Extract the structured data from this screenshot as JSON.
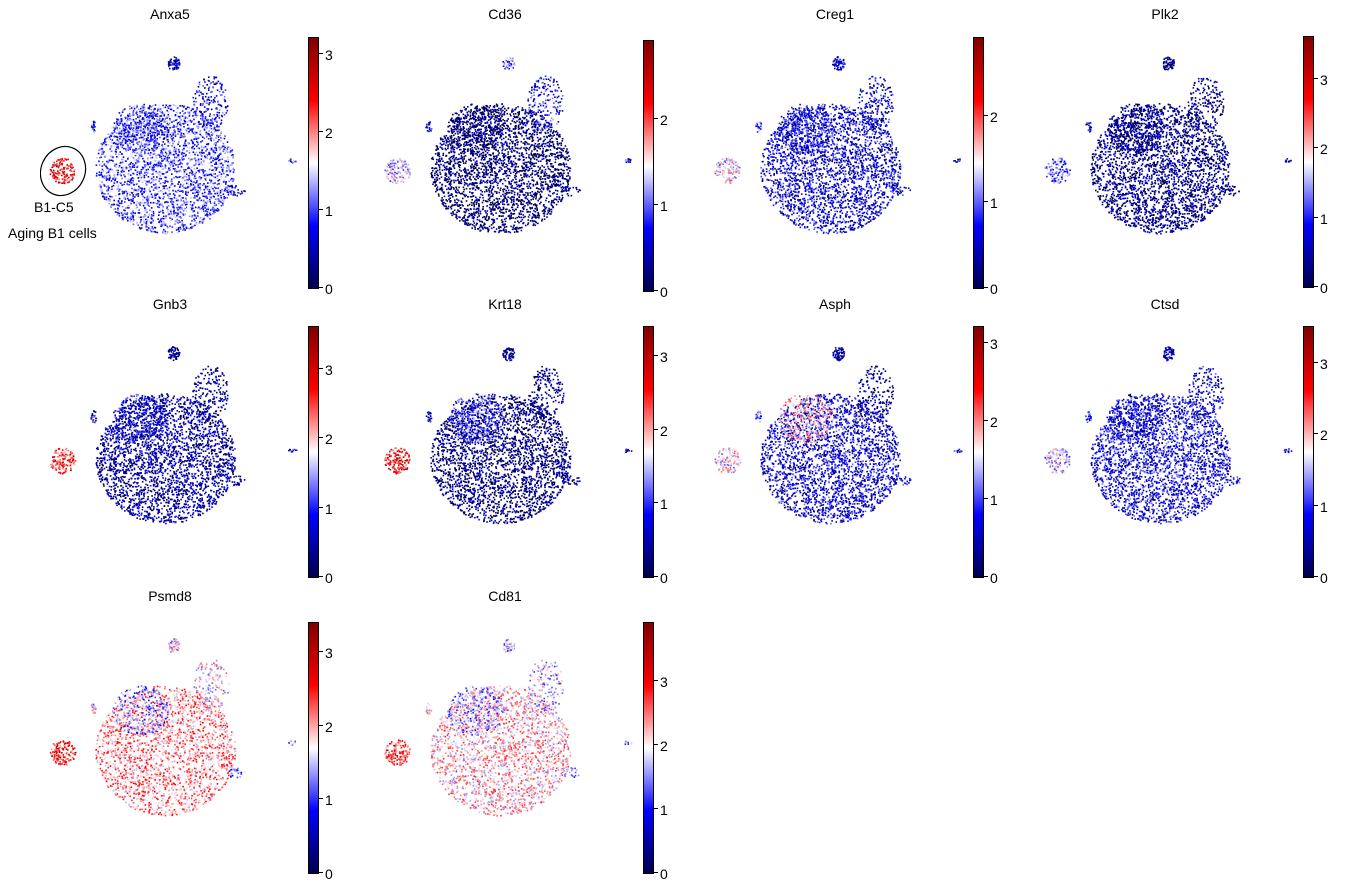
{
  "annotation": {
    "cluster": "B1-C5",
    "label": "Aging B1 cells"
  },
  "colormap": [
    "#00004c",
    "#0000ff",
    "#ffffff",
    "#ff0000",
    "#800000"
  ],
  "chart_data": [
    {
      "type": "scatter",
      "title": "Anxa5",
      "vmax": 3.2,
      "ticks": [
        "0",
        "1",
        "2",
        "3"
      ]
    },
    {
      "type": "scatter",
      "title": "Cd36",
      "vmax": 2.9,
      "ticks": [
        "0",
        "1",
        "2"
      ]
    },
    {
      "type": "scatter",
      "title": "Creg1",
      "vmax": 2.9,
      "ticks": [
        "0",
        "1",
        "2"
      ]
    },
    {
      "type": "scatter",
      "title": "Plk2",
      "vmax": 3.6,
      "ticks": [
        "0",
        "1",
        "2",
        "3"
      ]
    },
    {
      "type": "scatter",
      "title": "Gnb3",
      "vmax": 3.6,
      "ticks": [
        "0",
        "1",
        "2",
        "3"
      ]
    },
    {
      "type": "scatter",
      "title": "Krt18",
      "vmax": 3.4,
      "ticks": [
        "0",
        "1",
        "2",
        "3"
      ]
    },
    {
      "type": "scatter",
      "title": "Asph",
      "vmax": 3.2,
      "ticks": [
        "0",
        "1",
        "2",
        "3"
      ]
    },
    {
      "type": "scatter",
      "title": "Ctsd",
      "vmax": 3.5,
      "ticks": [
        "0",
        "1",
        "2",
        "3"
      ]
    },
    {
      "type": "scatter",
      "title": "Psmd8",
      "vmax": 3.4,
      "ticks": [
        "0",
        "1",
        "2",
        "3"
      ]
    },
    {
      "type": "scatter",
      "title": "Cd81",
      "vmax": 3.9,
      "ticks": [
        "0",
        "1",
        "2",
        "3"
      ]
    }
  ]
}
